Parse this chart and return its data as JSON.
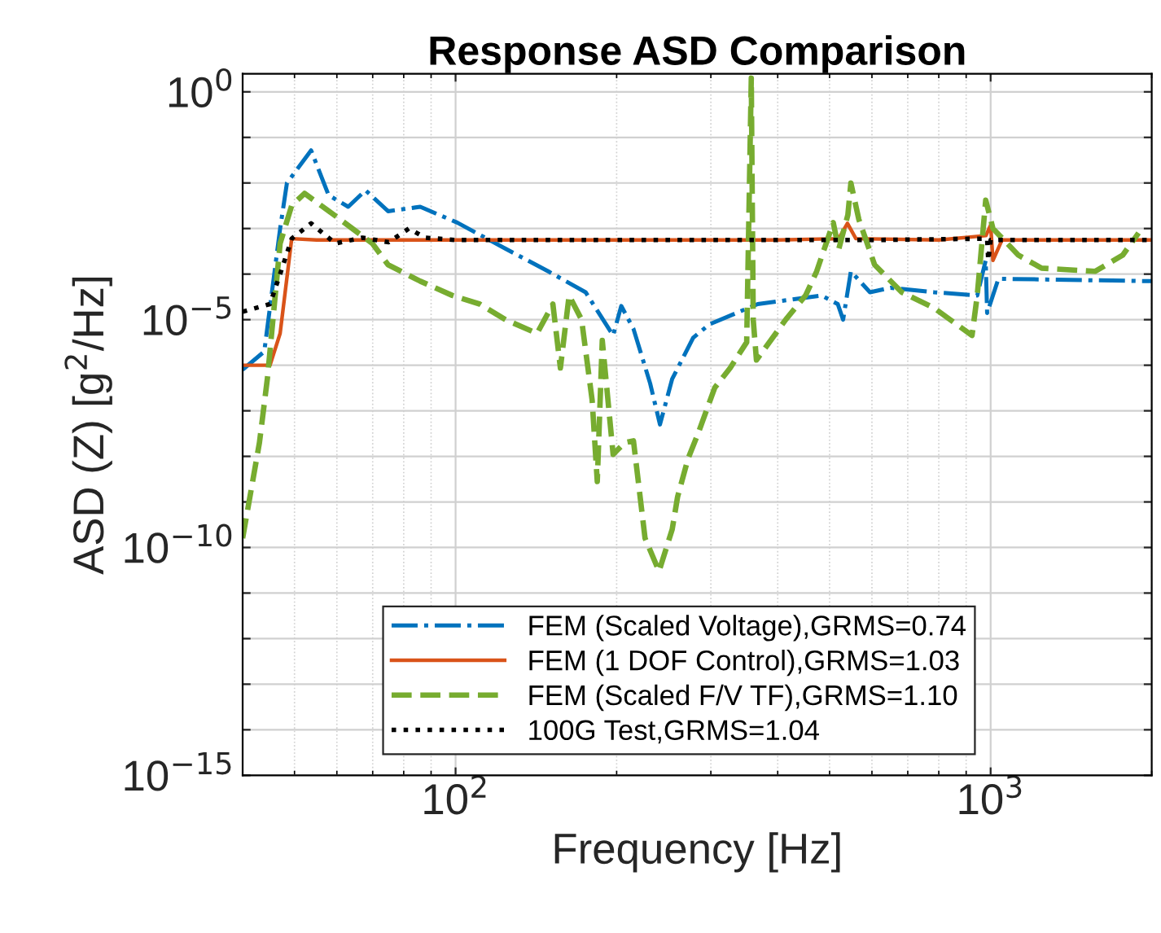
{
  "chart_data": {
    "type": "line",
    "title": "Response ASD Comparison",
    "xlabel": "Frequency [Hz]",
    "ylabel": "ASD (Z) [g$^{2}$/Hz]",
    "log": "xy",
    "xlim": [
      40,
      2000
    ],
    "xticks": [
      {
        "value": 100,
        "label": "10$^{2}$"
      },
      {
        "value": 1000,
        "label": "10$^{3}$"
      }
    ],
    "ylim": [
      1e-15,
      2.5
    ],
    "yticks": [
      {
        "value": 1e-15,
        "label": "10$^{−15}$"
      },
      {
        "value": 1e-14,
        "label": null
      },
      {
        "value": 1e-13,
        "label": null
      },
      {
        "value": 1e-12,
        "label": null
      },
      {
        "value": 1e-11,
        "label": null
      },
      {
        "value": 1e-10,
        "label": "10$^{−10}$"
      },
      {
        "value": 1e-09,
        "label": null
      },
      {
        "value": 1e-08,
        "label": null
      },
      {
        "value": 1e-07,
        "label": null
      },
      {
        "value": 1e-06,
        "label": null
      },
      {
        "value": 1e-05,
        "label": "10$^{−5}$"
      },
      {
        "value": 0.0001,
        "label": null
      },
      {
        "value": 0.001,
        "label": null
      },
      {
        "value": 0.01,
        "label": null
      },
      {
        "value": 0.1,
        "label": null
      },
      {
        "value": 1,
        "label": "10$^{0}$"
      }
    ],
    "grid": true,
    "legend": "bottom",
    "series": [
      {
        "name": "FEM (Scaled Voltage),GRMS=0.74",
        "color": "#0072bd",
        "line_style": "dashdot",
        "x": [
          40,
          43.9,
          47,
          48.4,
          53.7,
          57.9,
          63,
          67.9,
          74.8,
          85.9,
          100.7,
          124,
          149,
          175,
          197,
          204,
          215,
          231,
          241,
          254,
          278,
          298,
          367,
          483,
          518,
          530,
          548,
          595,
          650,
          784,
          944,
          979,
          985,
          1034,
          2000
        ],
        "values": [
          8e-07,
          2e-06,
          0.001,
          0.01,
          0.052,
          0.0054,
          0.003,
          0.0069,
          0.0024,
          0.003,
          0.00135,
          0.00036,
          0.000115,
          4e-05,
          4.5e-06,
          2e-05,
          6.3e-06,
          4e-07,
          5e-08,
          5e-07,
          4e-06,
          7.9e-06,
          2.2e-05,
          3.4e-05,
          2.2e-05,
          1e-05,
          0.000115,
          4e-05,
          5e-05,
          4e-05,
          3.4e-05,
          0.0002,
          1.4e-05,
          7.9e-05,
          7e-05
        ]
      },
      {
        "name": "FEM (1 DOF Control),GRMS=1.03",
        "color": "#d95319",
        "line_style": "solid",
        "x": [
          40,
          45,
          47,
          49.4,
          55,
          70,
          100,
          200,
          400,
          520,
          540,
          560,
          800,
          980,
          1000,
          1010,
          1050,
          2000
        ],
        "values": [
          1e-06,
          1e-06,
          5e-06,
          0.0006,
          0.00056,
          0.00056,
          0.00056,
          0.00056,
          0.00056,
          0.0006,
          0.0013,
          0.0006,
          0.00056,
          0.0007,
          0.0012,
          0.0002,
          0.00056,
          0.00056
        ]
      },
      {
        "name": "FEM (Scaled F/V TF),GRMS=1.10",
        "color": "#77ac30",
        "line_style": "dashed",
        "x": [
          40,
          43,
          44.5,
          47,
          49.4,
          52.2,
          59.6,
          69.9,
          74.8,
          85.9,
          98.6,
          111,
          124,
          142,
          152,
          157,
          163,
          172,
          180,
          184,
          188,
          197,
          207,
          215,
          226,
          240,
          254,
          260,
          272,
          284,
          305,
          326,
          350,
          357,
          360,
          365,
          414,
          451,
          473,
          508,
          520,
          541,
          548,
          567,
          607,
          682,
          784,
          923,
          944,
          979,
          1010,
          1127,
          1245,
          1567,
          1765,
          1890
        ],
        "values": [
          1.6e-10,
          2e-08,
          5.2e-07,
          0.00047,
          0.0032,
          0.0059,
          0.0019,
          0.00047,
          0.00016,
          7e-05,
          3.4e-05,
          2.2e-05,
          1e-05,
          5e-06,
          2.2e-05,
          8.7e-07,
          3.4e-05,
          1e-05,
          1.7e-07,
          2.8e-09,
          3.5e-06,
          1.1e-08,
          2e-08,
          2.2e-08,
          1.6e-10,
          3e-11,
          2.5e-10,
          1.3e-09,
          9e-09,
          3.2e-08,
          3.2e-07,
          8.7e-07,
          3.2e-06,
          2,
          1e-05,
          1.3e-06,
          1e-05,
          3.4e-05,
          0.000115,
          0.00135,
          0.00035,
          0.002,
          0.01,
          0.0016,
          0.00016,
          4e-05,
          1.8e-05,
          4.5e-06,
          3.4e-05,
          0.0042,
          0.001,
          0.00026,
          0.000135,
          0.000115,
          0.00026,
          0.0008
        ]
      },
      {
        "name": "100G Test,GRMS=1.04",
        "color": "#000000",
        "line_style": "dotted",
        "x": [
          40,
          45,
          47,
          49.4,
          53.7,
          59.6,
          67,
          75,
          81.8,
          87.7,
          100,
          300,
          600,
          985,
          990,
          1000,
          2000
        ],
        "values": [
          1.5e-05,
          2.2e-05,
          0.0001,
          0.0006,
          0.0013,
          0.00047,
          0.00063,
          0.0005,
          0.001,
          0.00063,
          0.00056,
          0.00056,
          0.00056,
          0.0006,
          0.0002,
          0.00056,
          0.00056
        ]
      }
    ]
  }
}
